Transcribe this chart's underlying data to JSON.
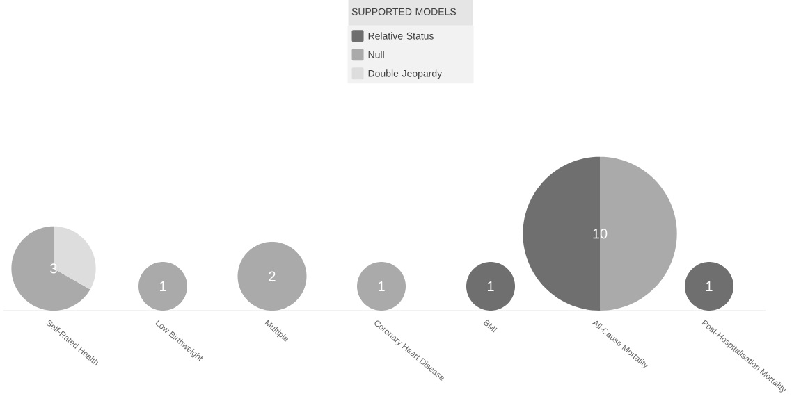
{
  "chart_data": [
    {
      "type": "pie",
      "title": "Self-Rated Health",
      "legend_title": "SUPPORTED MODELS",
      "legend": "top right",
      "categories": [
        "Relative Status",
        "Null",
        "Double Jeopardy"
      ],
      "values": [
        0,
        66.7,
        33.3
      ],
      "colors": [
        "#6f6f6f",
        "#aaaaaa",
        "#dddddd"
      ],
      "annotations": [
        "3"
      ]
    },
    {
      "type": "pie",
      "title": "Low Birthweight",
      "categories": [
        null,
        null,
        null
      ],
      "values": [
        0,
        100,
        0
      ],
      "colors": [
        "#6f6f6f",
        "#aaaaaa",
        "#dddddd"
      ],
      "annotations": [
        "1"
      ]
    },
    {
      "type": "pie",
      "title": "Multiple",
      "categories": [
        null,
        null,
        null
      ],
      "values": [
        0,
        100,
        0
      ],
      "colors": [
        "#6f6f6f",
        "#aaaaaa",
        "#dddddd"
      ],
      "annotations": [
        "2"
      ]
    },
    {
      "type": "pie",
      "title": "Coronary Heart Disease",
      "categories": [
        null,
        null,
        null
      ],
      "values": [
        0,
        100,
        0
      ],
      "colors": [
        "#6f6f6f",
        "#aaaaaa",
        "#dddddd"
      ],
      "annotations": [
        "1"
      ]
    },
    {
      "type": "pie",
      "title": "BMI",
      "categories": [
        null,
        null,
        null
      ],
      "values": [
        100,
        0,
        0
      ],
      "colors": [
        "#6f6f6f",
        "#aaaaaa",
        "#dddddd"
      ],
      "annotations": [
        "1"
      ]
    },
    {
      "type": "pie",
      "title": "All-Cause Mortality",
      "categories": [
        null,
        null,
        null
      ],
      "values": [
        50,
        50,
        0
      ],
      "colors": [
        "#6f6f6f",
        "#aaaaaa",
        "#dddddd"
      ],
      "annotations": [
        "10"
      ]
    },
    {
      "type": "pie",
      "title": "Post-Hospitalisation Mortality",
      "categories": [
        null,
        null,
        null
      ],
      "values": [
        100,
        0,
        0
      ],
      "colors": [
        "#6f6f6f",
        "#aaaaaa",
        "#dddddd"
      ],
      "annotations": [
        "1"
      ]
    }
  ]
}
